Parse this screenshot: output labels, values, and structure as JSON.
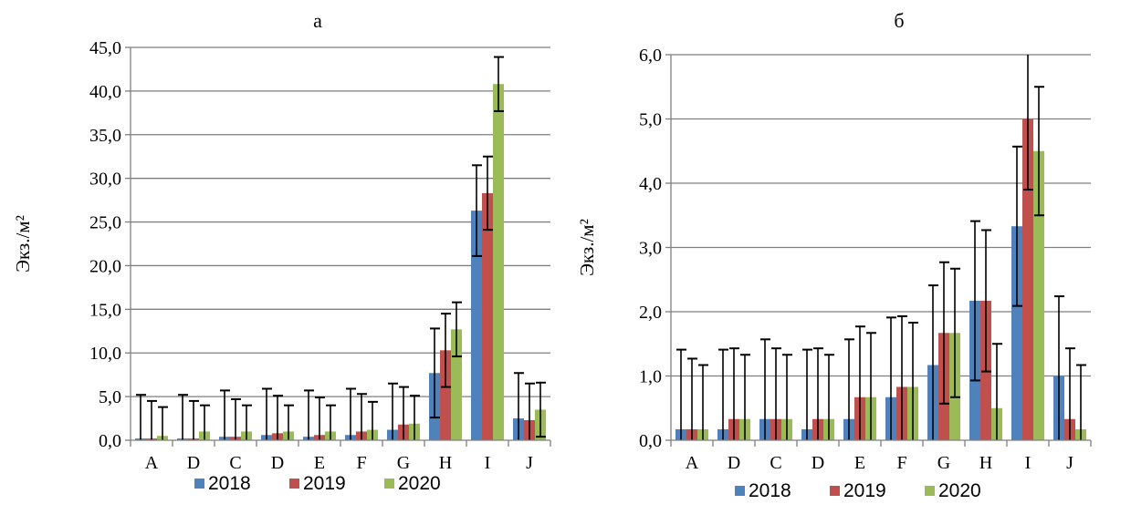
{
  "colors": {
    "2018": "#4f81bd",
    "2019": "#c0504d",
    "2020": "#9bbb59",
    "grid": "#7f7f7f",
    "error": "#000000"
  },
  "chart_data": [
    {
      "type": "bar",
      "title": "а",
      "ylabel": "Экз./м²",
      "ylim": [
        0,
        45
      ],
      "ytick_step": 5,
      "ytick_labels": [
        "0,0",
        "5,0",
        "10,0",
        "15,0",
        "20,0",
        "25,0",
        "30,0",
        "35,0",
        "40,0",
        "45,0"
      ],
      "categories": [
        "A",
        "D",
        "C",
        "D",
        "E",
        "F",
        "G",
        "H",
        "I",
        "J"
      ],
      "grid": true,
      "legend": "bottom",
      "series": [
        {
          "name": "2018",
          "values": [
            0.2,
            0.2,
            0.4,
            0.6,
            0.4,
            0.6,
            1.2,
            7.7,
            26.3,
            2.5
          ],
          "errors": [
            5.0,
            5.0,
            5.3,
            5.3,
            5.3,
            5.3,
            5.3,
            5.1,
            5.2,
            5.2
          ]
        },
        {
          "name": "2019",
          "values": [
            0.2,
            0.2,
            0.4,
            0.8,
            0.6,
            1.0,
            1.8,
            10.3,
            28.3,
            2.3
          ],
          "errors": [
            4.3,
            4.3,
            4.3,
            4.3,
            4.3,
            4.3,
            4.3,
            4.2,
            4.2,
            4.2
          ]
        },
        {
          "name": "2020",
          "values": [
            0.5,
            1.0,
            1.0,
            1.0,
            1.0,
            1.2,
            1.9,
            12.7,
            40.8,
            3.5
          ],
          "errors": [
            3.3,
            3.0,
            3.0,
            3.0,
            3.0,
            3.2,
            3.2,
            3.1,
            3.1,
            3.1
          ]
        }
      ]
    },
    {
      "type": "bar",
      "title": "б",
      "ylabel": "Экз./м²",
      "ylim": [
        0,
        6
      ],
      "ytick_step": 1,
      "ytick_labels": [
        "0,0",
        "1,0",
        "2,0",
        "3,0",
        "4,0",
        "5,0",
        "6,0"
      ],
      "categories": [
        "A",
        "D",
        "C",
        "D",
        "E",
        "F",
        "G",
        "H",
        "I",
        "J"
      ],
      "grid": true,
      "legend": "bottom",
      "series": [
        {
          "name": "2018",
          "values": [
            0.17,
            0.17,
            0.33,
            0.17,
            0.33,
            0.67,
            1.17,
            2.17,
            3.33,
            1.0
          ],
          "errors": [
            1.24,
            1.24,
            1.24,
            1.24,
            1.24,
            1.24,
            1.24,
            1.24,
            1.24,
            1.24
          ]
        },
        {
          "name": "2019",
          "values": [
            0.17,
            0.33,
            0.33,
            0.33,
            0.67,
            0.83,
            1.67,
            2.17,
            5.0,
            0.33
          ],
          "errors": [
            1.1,
            1.1,
            1.1,
            1.1,
            1.1,
            1.1,
            1.1,
            1.1,
            1.1,
            1.1
          ]
        },
        {
          "name": "2020",
          "values": [
            0.17,
            0.33,
            0.33,
            0.33,
            0.67,
            0.83,
            1.67,
            0.5,
            4.5,
            0.17
          ],
          "errors": [
            1.0,
            1.0,
            1.0,
            1.0,
            1.0,
            1.0,
            1.0,
            1.0,
            1.0,
            1.0
          ]
        }
      ]
    }
  ]
}
